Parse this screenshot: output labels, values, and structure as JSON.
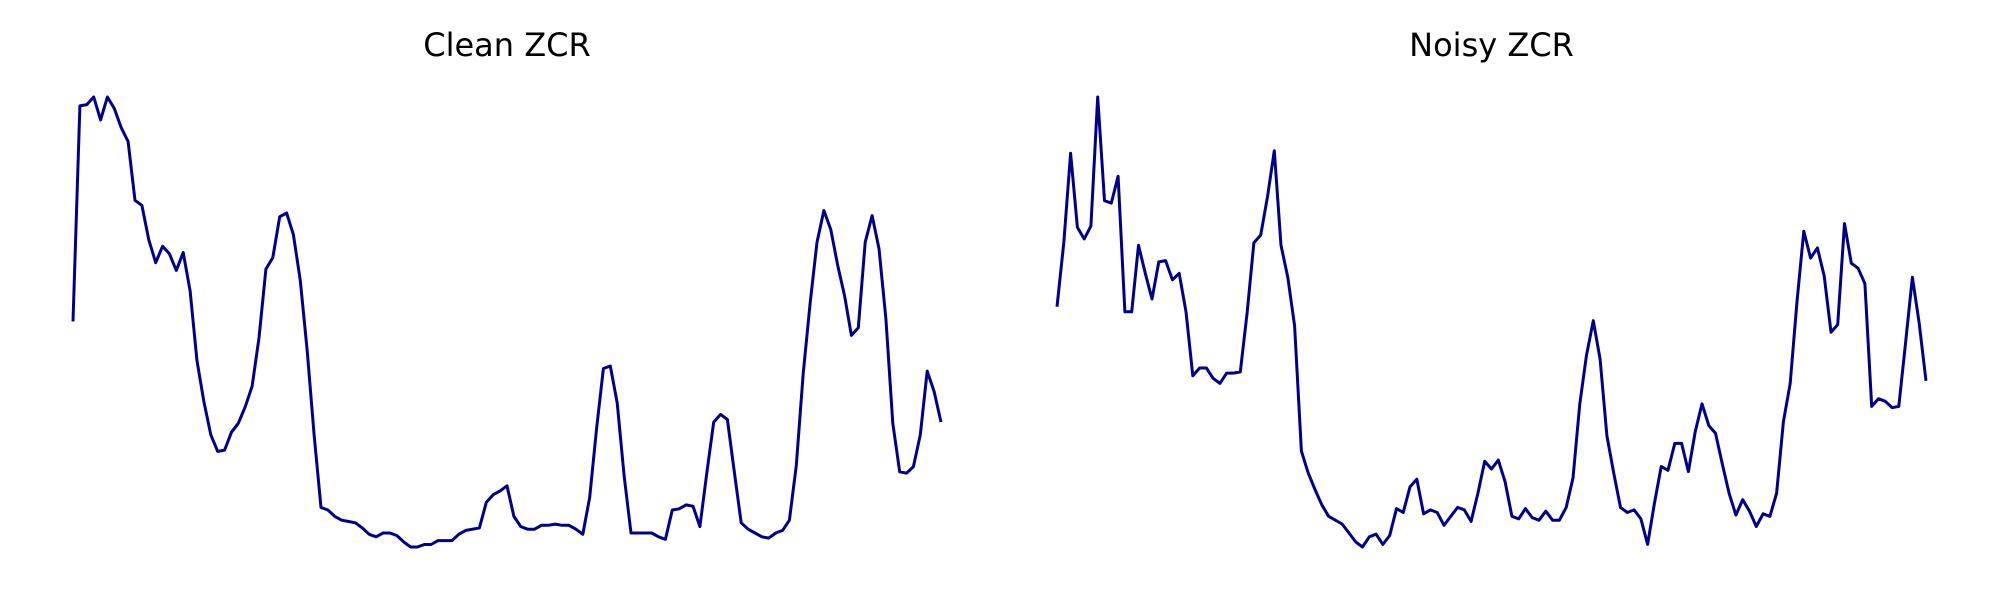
{
  "chart_data": [
    {
      "type": "line",
      "title": "Clean ZCR",
      "color": "#00008b",
      "values": [
        188,
        357,
        358,
        364,
        346,
        364,
        355,
        340,
        329,
        283,
        279,
        252,
        234,
        247,
        241,
        228,
        242,
        212,
        157,
        125,
        99,
        86,
        87,
        101,
        108,
        121,
        137,
        175,
        229,
        238,
        270,
        273,
        256,
        220,
        165,
        99,
        42,
        40,
        35,
        32,
        31,
        30,
        26,
        21,
        19,
        22,
        22,
        20,
        15,
        11,
        11,
        13,
        13,
        16,
        16,
        16,
        21,
        24,
        25,
        26,
        46,
        52,
        55,
        59,
        35,
        27,
        25,
        25,
        28,
        28,
        29,
        28,
        28,
        25,
        21,
        50,
        104,
        151,
        153,
        124,
        67,
        22,
        22,
        22,
        22,
        19,
        17,
        40,
        41,
        44,
        43,
        27,
        69,
        109,
        115,
        111,
        70,
        30,
        25,
        22,
        19,
        18,
        22,
        24,
        32,
        75,
        147,
        202,
        250,
        275,
        260,
        232,
        208,
        177,
        183,
        250,
        271,
        245,
        190,
        108,
        70,
        69,
        74,
        99,
        149,
        133,
        109
      ]
    },
    {
      "type": "line",
      "title": "Noisy ZCR",
      "color": "#00008b",
      "values": [
        200,
        250,
        320,
        262,
        253,
        263,
        364,
        283,
        281,
        302,
        196,
        196,
        248,
        226,
        206,
        235,
        236,
        221,
        226,
        196,
        146,
        152,
        152,
        144,
        140,
        148,
        148,
        149,
        195,
        250,
        256,
        286,
        322,
        248,
        223,
        185,
        87,
        70,
        57,
        45,
        36,
        33,
        30,
        23,
        16,
        12,
        20,
        22,
        14,
        21,
        42,
        39,
        59,
        65,
        38,
        41,
        39,
        29,
        36,
        43,
        41,
        32,
        54,
        79,
        73,
        80,
        63,
        36,
        34,
        42,
        35,
        33,
        40,
        33,
        33,
        43,
        66,
        124,
        162,
        189,
        159,
        99,
        70,
        43,
        39,
        41,
        34,
        14,
        46,
        75,
        72,
        93,
        93,
        71,
        102,
        124,
        107,
        101,
        77,
        54,
        37,
        49,
        40,
        28,
        38,
        36,
        54,
        110,
        140,
        204,
        259,
        238,
        246,
        224,
        180,
        186,
        265,
        234,
        230,
        218,
        122,
        128,
        126,
        121,
        122,
        172,
        223,
        187,
        142
      ]
    }
  ]
}
